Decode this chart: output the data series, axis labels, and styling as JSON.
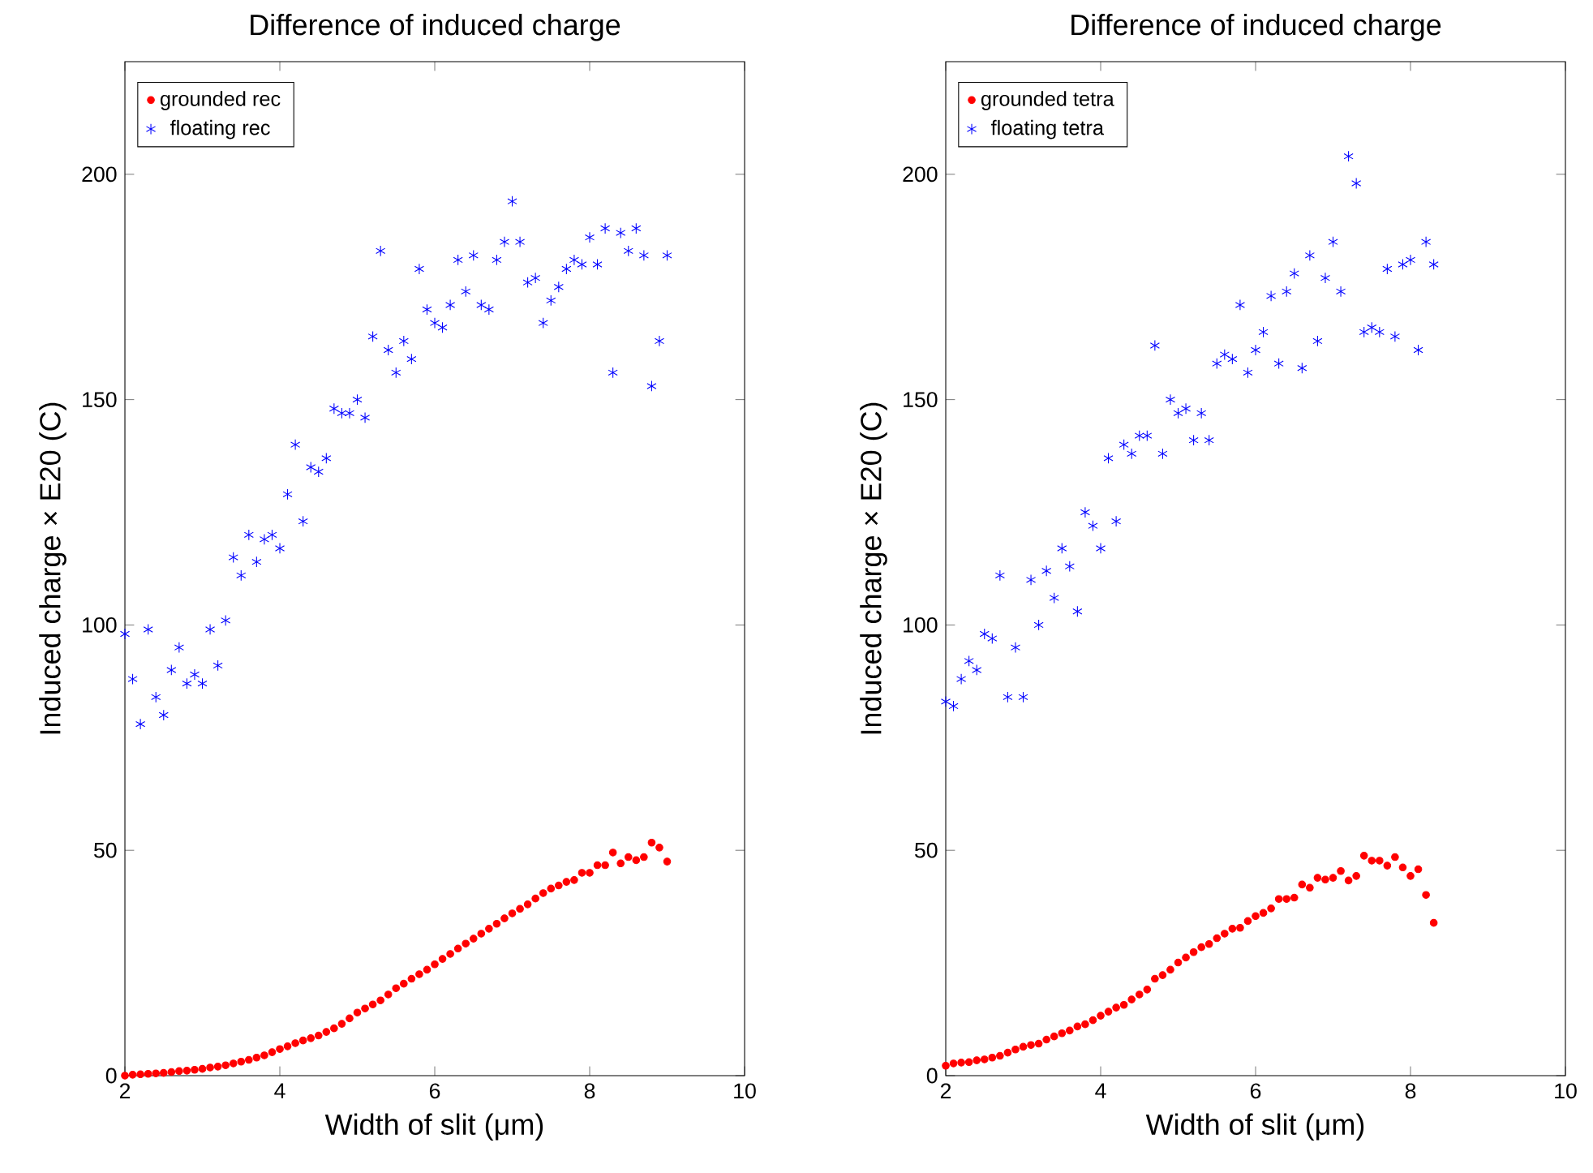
{
  "chart_data": [
    {
      "type": "scatter",
      "title": "Difference of induced charge",
      "xlabel": "Width of slit (μm)",
      "ylabel": "Induced charge × E20 (C)",
      "xlim": [
        2,
        10
      ],
      "ylim": [
        0,
        225
      ],
      "xticks": [
        2,
        4,
        6,
        8,
        10
      ],
      "yticks": [
        0,
        50,
        100,
        150,
        200
      ],
      "legend": "top left",
      "x": [
        2.0,
        2.1,
        2.2,
        2.3,
        2.4,
        2.5,
        2.6,
        2.7,
        2.8,
        2.9,
        3.0,
        3.1,
        3.2,
        3.3,
        3.4,
        3.5,
        3.6,
        3.7,
        3.8,
        3.9,
        4.0,
        4.1,
        4.2,
        4.3,
        4.4,
        4.5,
        4.6,
        4.7,
        4.8,
        4.9,
        5.0,
        5.1,
        5.2,
        5.3,
        5.4,
        5.5,
        5.6,
        5.7,
        5.8,
        5.9,
        6.0,
        6.1,
        6.2,
        6.3,
        6.4,
        6.5,
        6.6,
        6.7,
        6.8,
        6.9,
        7.0,
        7.1,
        7.2,
        7.3,
        7.4,
        7.5,
        7.6,
        7.7,
        7.8,
        7.9,
        8.0,
        8.1,
        8.2,
        8.3,
        8.4,
        8.5,
        8.6,
        8.7,
        8.8,
        8.9,
        9.0
      ],
      "series": [
        {
          "name": "grounded rec",
          "color": "#ff0000",
          "marker": "circle",
          "values": [
            0.0,
            0.2,
            0.3,
            0.4,
            0.5,
            0.6,
            0.8,
            1.0,
            1.1,
            1.3,
            1.5,
            1.8,
            2.0,
            2.3,
            2.7,
            3.1,
            3.5,
            4.0,
            4.5,
            5.2,
            5.9,
            6.5,
            7.2,
            7.8,
            8.3,
            8.9,
            9.7,
            10.5,
            11.5,
            12.7,
            14.0,
            14.9,
            15.8,
            16.7,
            18.0,
            19.4,
            20.4,
            21.5,
            22.5,
            23.5,
            24.7,
            25.9,
            27.0,
            28.2,
            29.3,
            30.4,
            31.5,
            32.6,
            33.7,
            34.9,
            36.0,
            37.0,
            38.0,
            39.3,
            40.5,
            41.5,
            42.2,
            43.0,
            43.4,
            45.0,
            45.0,
            46.7,
            46.7,
            49.5,
            47.1,
            48.5,
            47.8,
            48.5,
            51.7,
            50.6,
            47.5
          ]
        },
        {
          "name": "floating rec",
          "color": "#0000ff",
          "marker": "cross",
          "values": [
            98,
            88,
            78,
            99,
            84,
            80,
            90,
            95,
            87,
            89,
            87,
            99,
            91,
            101,
            115,
            111,
            120,
            114,
            119,
            120,
            117,
            129,
            140,
            123,
            135,
            134,
            137,
            148,
            147,
            147,
            150,
            146,
            164,
            183,
            161,
            156,
            163,
            159,
            179,
            170,
            167,
            166,
            171,
            181,
            174,
            182,
            171,
            170,
            181,
            185,
            194,
            185,
            176,
            177,
            167,
            172,
            175,
            179,
            181,
            180,
            186,
            180,
            188,
            156,
            187,
            183,
            188,
            182,
            153,
            163,
            182
          ]
        }
      ]
    },
    {
      "type": "scatter",
      "title": "Difference of induced charge",
      "xlabel": "Width of slit (μm)",
      "ylabel": "Induced charge × E20 (C)",
      "xlim": [
        2,
        10
      ],
      "ylim": [
        0,
        225
      ],
      "xticks": [
        2,
        4,
        6,
        8,
        10
      ],
      "yticks": [
        0,
        50,
        100,
        150,
        200
      ],
      "legend": "top left",
      "x": [
        2.0,
        2.1,
        2.2,
        2.3,
        2.4,
        2.5,
        2.6,
        2.7,
        2.8,
        2.9,
        3.0,
        3.1,
        3.2,
        3.3,
        3.4,
        3.5,
        3.6,
        3.7,
        3.8,
        3.9,
        4.0,
        4.1,
        4.2,
        4.3,
        4.4,
        4.5,
        4.6,
        4.7,
        4.8,
        4.9,
        5.0,
        5.1,
        5.2,
        5.3,
        5.4,
        5.5,
        5.6,
        5.7,
        5.8,
        5.9,
        6.0,
        6.1,
        6.2,
        6.3,
        6.4,
        6.5,
        6.6,
        6.7,
        6.8,
        6.9,
        7.0,
        7.1,
        7.2,
        7.3,
        7.4,
        7.5,
        7.6,
        7.7,
        7.8,
        7.9,
        8.0,
        8.1,
        8.2,
        8.3
      ],
      "series": [
        {
          "name": "grounded tetra",
          "color": "#ff0000",
          "marker": "circle",
          "values": [
            2.2,
            2.7,
            2.9,
            3.0,
            3.4,
            3.6,
            4.0,
            4.4,
            5.1,
            5.8,
            6.4,
            6.8,
            7.1,
            8.0,
            8.7,
            9.4,
            10.0,
            10.9,
            11.4,
            12.3,
            13.3,
            14.2,
            15.1,
            15.7,
            16.9,
            18.0,
            19.1,
            21.5,
            22.3,
            23.5,
            25.1,
            26.2,
            27.4,
            28.5,
            29.2,
            30.5,
            31.5,
            32.6,
            32.8,
            34.3,
            35.4,
            36.1,
            37.1,
            39.2,
            39.2,
            39.5,
            42.4,
            41.7,
            43.9,
            43.5,
            43.9,
            45.4,
            43.3,
            44.3,
            48.8,
            47.7,
            47.7,
            46.6,
            48.5,
            46.2,
            44.3,
            45.8,
            40.1,
            33.9
          ]
        },
        {
          "name": "floating tetra",
          "color": "#0000ff",
          "marker": "cross",
          "values": [
            83,
            82,
            88,
            92,
            90,
            98,
            97,
            111,
            84,
            95,
            84,
            110,
            100,
            112,
            106,
            117,
            113,
            103,
            125,
            122,
            117,
            137,
            123,
            140,
            138,
            142,
            142,
            162,
            138,
            150,
            147,
            148,
            141,
            147,
            141,
            158,
            160,
            159,
            171,
            156,
            161,
            165,
            173,
            158,
            174,
            178,
            157,
            182,
            163,
            177,
            185,
            174,
            204,
            198,
            165,
            166,
            165,
            179,
            164,
            180,
            181,
            161,
            185,
            180
          ]
        }
      ]
    }
  ]
}
